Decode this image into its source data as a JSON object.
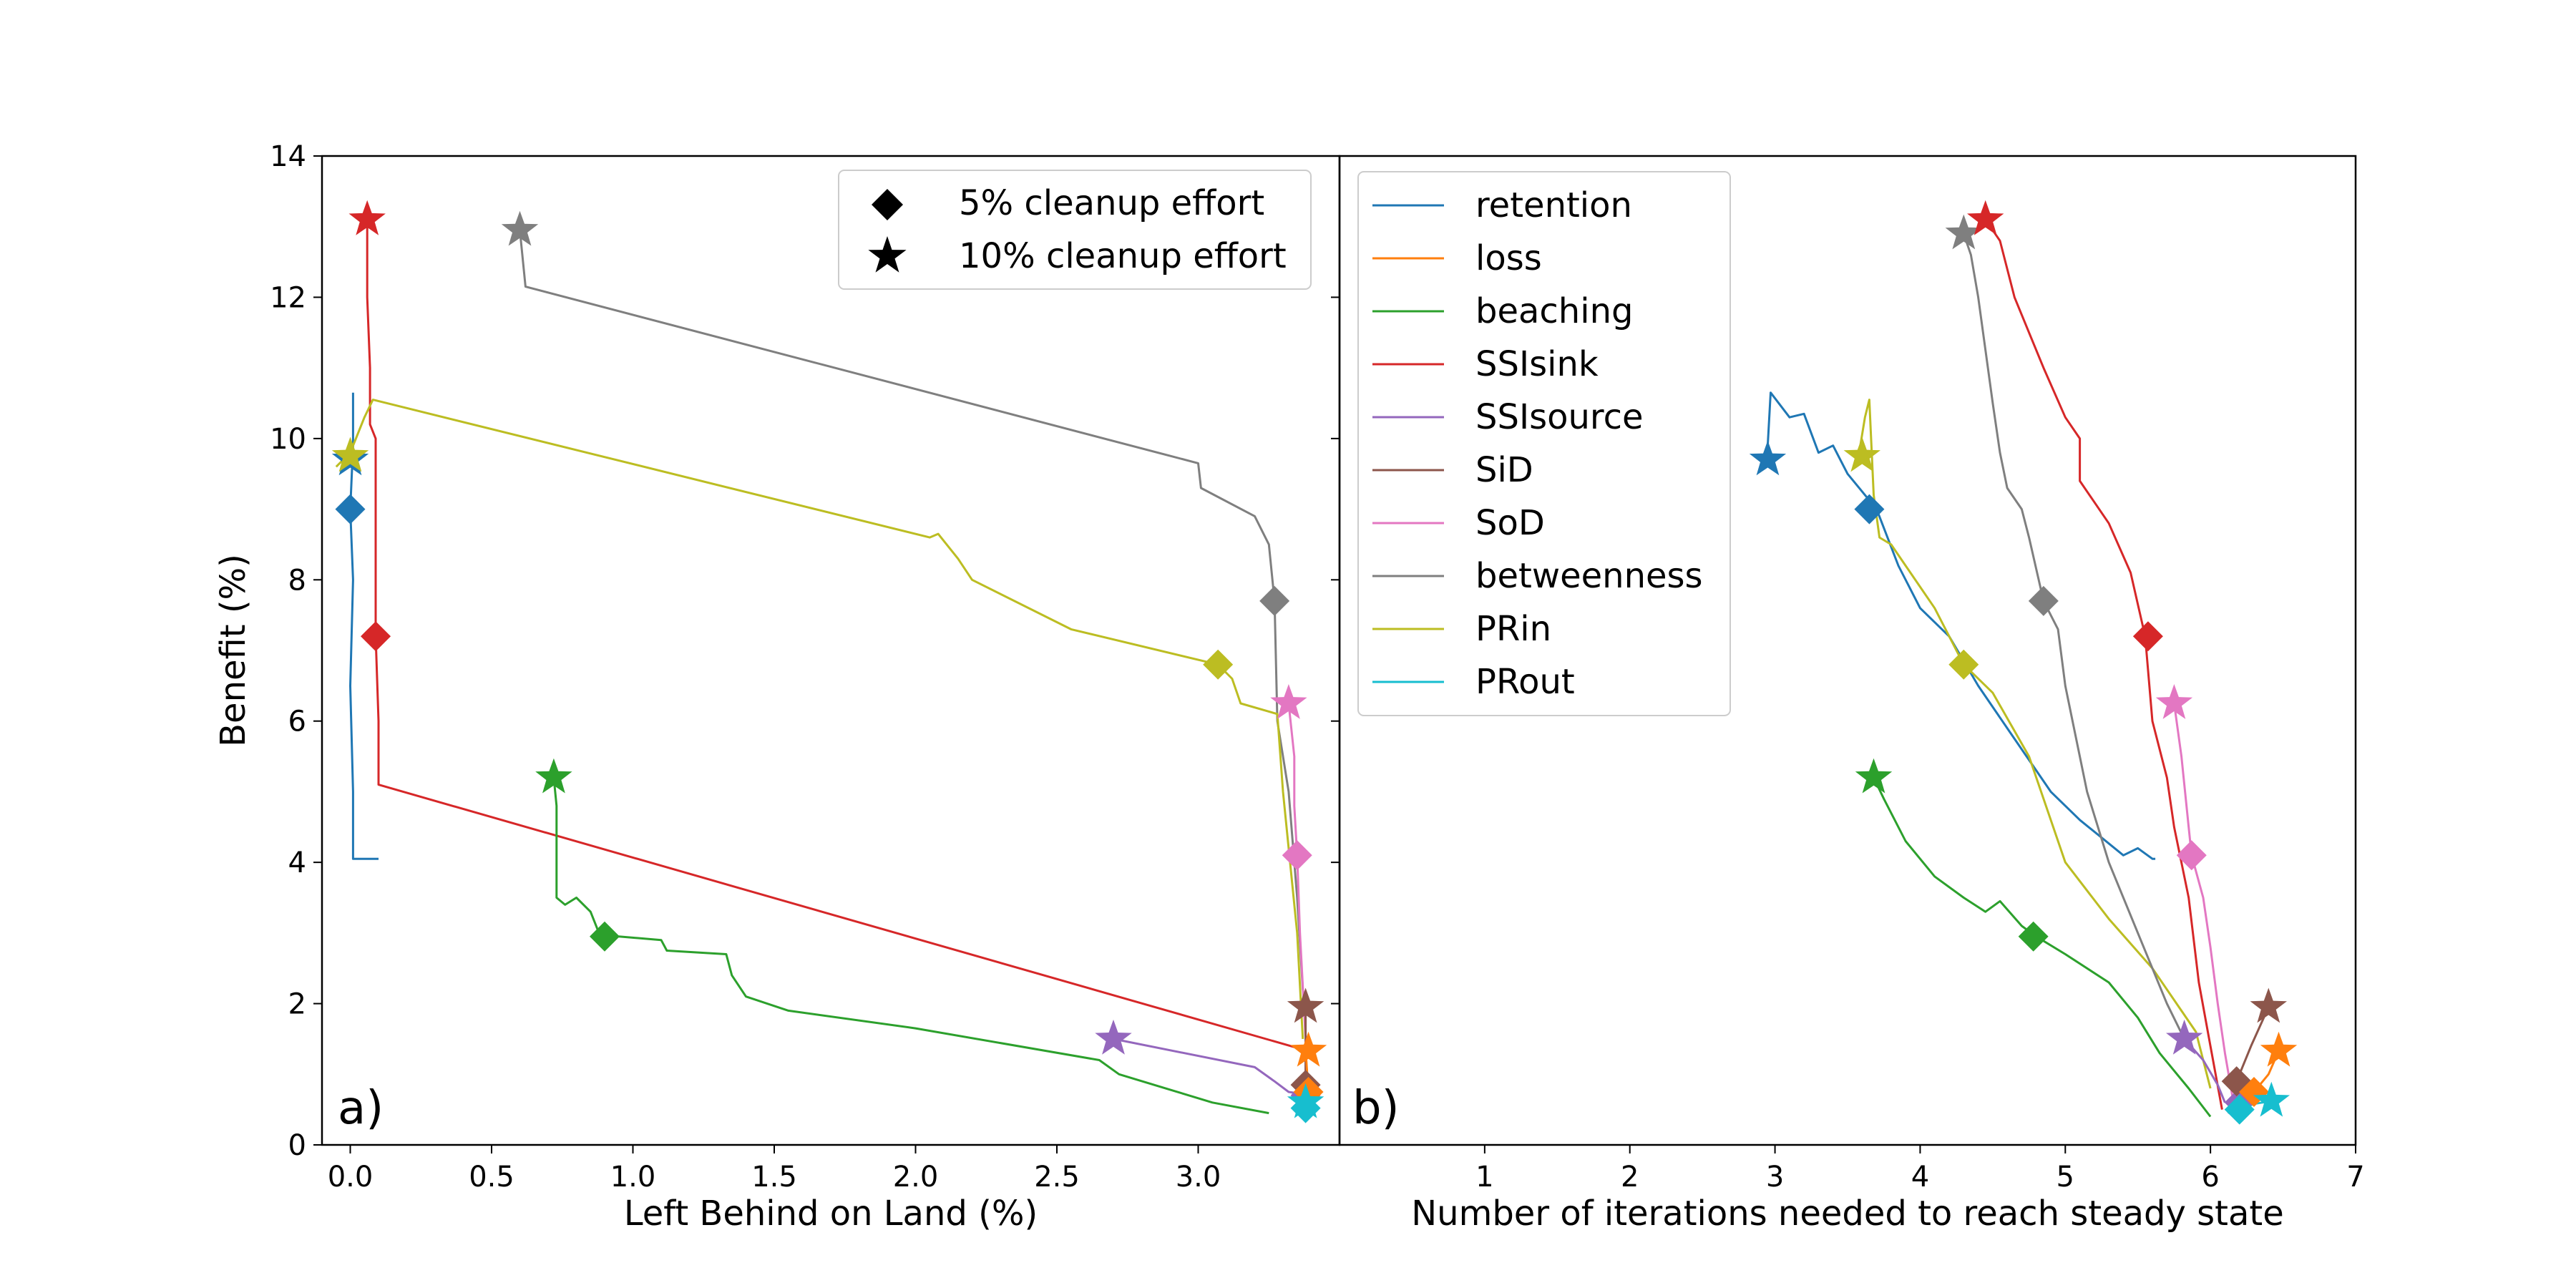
{
  "colors": {
    "retention": "#1f77b4",
    "loss": "#ff7f0e",
    "beaching": "#2ca02c",
    "SSIsink": "#d62728",
    "SSIsource": "#9467bd",
    "SiD": "#8c564b",
    "SoD": "#e377c2",
    "betweenness": "#7f7f7f",
    "PRin": "#bcbd22",
    "PRout": "#17becf",
    "frame": "#000000"
  },
  "chart_data": [
    {
      "type": "line",
      "panel_label": "a)",
      "xlabel": "Left Behind on Land (%)",
      "ylabel": "Benefit (%)",
      "xlim": [
        -0.1,
        3.5
      ],
      "ylim": [
        0,
        14
      ],
      "xticks": [
        0.0,
        0.5,
        1.0,
        1.5,
        2.0,
        2.5,
        3.0
      ],
      "xtick_labels": [
        "0.0",
        "0.5",
        "1.0",
        "1.5",
        "2.0",
        "2.5",
        "3.0"
      ],
      "yticks": [
        0,
        2,
        4,
        6,
        8,
        10,
        12,
        14
      ],
      "ytick_labels": [
        "0",
        "2",
        "4",
        "6",
        "8",
        "10",
        "12",
        "14"
      ],
      "legend_position": "top-right",
      "legend": [
        {
          "marker": "diamond",
          "label": "5% cleanup effort"
        },
        {
          "marker": "star",
          "label": "10% cleanup effort"
        }
      ],
      "series": [
        {
          "key": "retention",
          "line": [
            [
              0.01,
              10.65
            ],
            [
              0.01,
              9.9
            ],
            [
              0.0,
              9.0
            ],
            [
              0.01,
              8.0
            ],
            [
              0.0,
              6.5
            ],
            [
              0.01,
              5.0
            ],
            [
              0.01,
              4.05
            ],
            [
              0.03,
              4.05
            ],
            [
              0.1,
              4.05
            ]
          ],
          "star": [
            0.0,
            9.7
          ],
          "diamond": [
            0.0,
            9.0
          ]
        },
        {
          "key": "SSIsink",
          "line": [
            [
              0.06,
              13.1
            ],
            [
              0.06,
              12.0
            ],
            [
              0.07,
              11.0
            ],
            [
              0.07,
              10.2
            ],
            [
              0.09,
              10.0
            ],
            [
              0.09,
              7.2
            ],
            [
              0.1,
              6.0
            ],
            [
              0.1,
              5.1
            ],
            [
              3.37,
              1.35
            ]
          ],
          "star": [
            0.06,
            13.1
          ],
          "diamond": [
            0.09,
            7.2
          ]
        },
        {
          "key": "betweenness",
          "line": [
            [
              0.6,
              12.95
            ],
            [
              0.62,
              12.15
            ],
            [
              3.0,
              9.65
            ],
            [
              3.01,
              9.3
            ],
            [
              3.2,
              8.9
            ],
            [
              3.25,
              8.5
            ],
            [
              3.27,
              7.7
            ],
            [
              3.28,
              6.0
            ],
            [
              3.32,
              5.0
            ],
            [
              3.35,
              3.5
            ],
            [
              3.37,
              2.2
            ],
            [
              3.38,
              1.95
            ]
          ],
          "star": [
            0.6,
            12.95
          ],
          "diamond": [
            3.27,
            7.7
          ]
        },
        {
          "key": "PRin",
          "line": [
            [
              -0.05,
              9.6
            ],
            [
              0.0,
              9.8
            ],
            [
              0.05,
              10.3
            ],
            [
              0.08,
              10.55
            ],
            [
              2.05,
              8.6
            ],
            [
              2.08,
              8.65
            ],
            [
              2.15,
              8.3
            ],
            [
              2.2,
              8.0
            ],
            [
              2.55,
              7.3
            ],
            [
              3.07,
              6.8
            ],
            [
              3.12,
              6.6
            ],
            [
              3.15,
              6.25
            ],
            [
              3.28,
              6.1
            ],
            [
              3.3,
              5.0
            ],
            [
              3.35,
              3.0
            ],
            [
              3.37,
              1.5
            ]
          ],
          "star": [
            0.0,
            9.75
          ],
          "diamond": [
            3.07,
            6.8
          ]
        },
        {
          "key": "beaching",
          "line": [
            [
              0.72,
              5.2
            ],
            [
              0.73,
              4.8
            ],
            [
              0.73,
              3.5
            ],
            [
              0.76,
              3.4
            ],
            [
              0.8,
              3.5
            ],
            [
              0.85,
              3.3
            ],
            [
              0.88,
              3.0
            ],
            [
              0.95,
              2.95
            ],
            [
              1.1,
              2.9
            ],
            [
              1.12,
              2.75
            ],
            [
              1.33,
              2.7
            ],
            [
              1.35,
              2.4
            ],
            [
              1.4,
              2.1
            ],
            [
              1.55,
              1.9
            ],
            [
              2.0,
              1.65
            ],
            [
              2.65,
              1.2
            ],
            [
              2.72,
              1.0
            ],
            [
              3.05,
              0.6
            ],
            [
              3.25,
              0.45
            ]
          ],
          "star": [
            0.72,
            5.2
          ],
          "diamond": [
            0.9,
            2.95
          ]
        },
        {
          "key": "SSIsource",
          "line": [
            [
              2.7,
              1.5
            ],
            [
              3.2,
              1.1
            ],
            [
              3.27,
              0.9
            ],
            [
              3.32,
              0.75
            ],
            [
              3.4,
              0.7
            ]
          ],
          "star": [
            2.7,
            1.5
          ],
          "diamond": [
            3.38,
            0.7
          ]
        },
        {
          "key": "SoD",
          "line": [
            [
              3.32,
              6.25
            ],
            [
              3.34,
              5.5
            ],
            [
              3.34,
              4.8
            ],
            [
              3.35,
              4.1
            ],
            [
              3.36,
              3.0
            ],
            [
              3.38,
              1.5
            ],
            [
              3.38,
              0.9
            ]
          ],
          "star": [
            3.32,
            6.25
          ],
          "diamond": [
            3.35,
            4.1
          ]
        },
        {
          "key": "SiD",
          "line": [
            [
              3.38,
              1.95
            ],
            [
              3.38,
              0.9
            ]
          ],
          "star": [
            3.38,
            1.95
          ],
          "diamond": [
            3.38,
            0.85
          ]
        },
        {
          "key": "loss",
          "line": [
            [
              3.38,
              1.35
            ],
            [
              3.39,
              0.75
            ]
          ],
          "star": [
            3.39,
            1.33
          ],
          "diamond": [
            3.39,
            0.75
          ]
        },
        {
          "key": "PRout",
          "line": [
            [
              3.37,
              0.65
            ],
            [
              3.38,
              0.5
            ]
          ],
          "star": [
            3.38,
            0.6
          ],
          "diamond": [
            3.38,
            0.52
          ]
        }
      ]
    },
    {
      "type": "line",
      "panel_label": "b)",
      "xlabel": "Number of iterations needed to reach steady state",
      "ylabel": "",
      "xlim": [
        0,
        7
      ],
      "ylim": [
        0,
        14
      ],
      "xticks": [
        1,
        2,
        3,
        4,
        5,
        6,
        7
      ],
      "xtick_labels": [
        "1",
        "2",
        "3",
        "4",
        "5",
        "6",
        "7"
      ],
      "legend_position": "top-left",
      "legend": [
        {
          "key": "retention",
          "label": "retention"
        },
        {
          "key": "loss",
          "label": "loss"
        },
        {
          "key": "beaching",
          "label": "beaching"
        },
        {
          "key": "SSIsink",
          "label": "SSIsink"
        },
        {
          "key": "SSIsource",
          "label": "SSIsource"
        },
        {
          "key": "SiD",
          "label": "SiD"
        },
        {
          "key": "SoD",
          "label": "SoD"
        },
        {
          "key": "betweenness",
          "label": "betweenness"
        },
        {
          "key": "PRin",
          "label": "PRin"
        },
        {
          "key": "PRout",
          "label": "PRout"
        }
      ],
      "series": [
        {
          "key": "retention",
          "line": [
            [
              2.95,
              9.9
            ],
            [
              2.97,
              10.65
            ],
            [
              3.1,
              10.3
            ],
            [
              3.2,
              10.35
            ],
            [
              3.3,
              9.8
            ],
            [
              3.4,
              9.9
            ],
            [
              3.5,
              9.5
            ],
            [
              3.7,
              9.0
            ],
            [
              3.85,
              8.2
            ],
            [
              4.0,
              7.6
            ],
            [
              4.2,
              7.2
            ],
            [
              4.4,
              6.5
            ],
            [
              4.6,
              5.9
            ],
            [
              4.9,
              5.0
            ],
            [
              5.1,
              4.6
            ],
            [
              5.4,
              4.1
            ],
            [
              5.5,
              4.2
            ],
            [
              5.6,
              4.05
            ],
            [
              5.62,
              4.05
            ]
          ],
          "star": [
            2.95,
            9.7
          ],
          "diamond": [
            3.65,
            9.0
          ]
        },
        {
          "key": "PRin",
          "line": [
            [
              3.58,
              9.8
            ],
            [
              3.62,
              10.3
            ],
            [
              3.65,
              10.55
            ],
            [
              3.68,
              9.2
            ],
            [
              3.72,
              8.6
            ],
            [
              3.8,
              8.5
            ],
            [
              3.9,
              8.2
            ],
            [
              4.1,
              7.6
            ],
            [
              4.3,
              6.8
            ],
            [
              4.5,
              6.4
            ],
            [
              4.75,
              5.5
            ],
            [
              5.0,
              4.0
            ],
            [
              5.3,
              3.2
            ],
            [
              5.6,
              2.5
            ],
            [
              5.9,
              1.6
            ],
            [
              6.0,
              0.8
            ]
          ],
          "star": [
            3.6,
            9.75
          ],
          "diamond": [
            4.3,
            6.8
          ]
        },
        {
          "key": "beaching",
          "line": [
            [
              3.68,
              5.2
            ],
            [
              3.75,
              4.9
            ],
            [
              3.9,
              4.3
            ],
            [
              4.1,
              3.8
            ],
            [
              4.3,
              3.5
            ],
            [
              4.45,
              3.3
            ],
            [
              4.55,
              3.45
            ],
            [
              4.7,
              3.1
            ],
            [
              4.8,
              2.95
            ],
            [
              5.0,
              2.7
            ],
            [
              5.3,
              2.3
            ],
            [
              5.5,
              1.8
            ],
            [
              5.65,
              1.3
            ],
            [
              5.85,
              0.8
            ],
            [
              6.0,
              0.4
            ]
          ],
          "star": [
            3.68,
            5.2
          ],
          "diamond": [
            4.78,
            2.95
          ]
        },
        {
          "key": "betweenness",
          "line": [
            [
              4.3,
              12.9
            ],
            [
              4.35,
              12.6
            ],
            [
              4.4,
              12.0
            ],
            [
              4.5,
              10.5
            ],
            [
              4.55,
              9.8
            ],
            [
              4.6,
              9.3
            ],
            [
              4.7,
              9.0
            ],
            [
              4.75,
              8.6
            ],
            [
              4.85,
              7.7
            ],
            [
              4.95,
              7.3
            ],
            [
              5.0,
              6.5
            ],
            [
              5.05,
              6.0
            ],
            [
              5.15,
              5.0
            ],
            [
              5.3,
              4.0
            ],
            [
              5.5,
              3.0
            ],
            [
              5.7,
              2.0
            ],
            [
              5.82,
              1.5
            ]
          ],
          "star": [
            4.3,
            12.9
          ],
          "diamond": [
            4.85,
            7.7
          ]
        },
        {
          "key": "SSIsink",
          "line": [
            [
              4.45,
              13.1
            ],
            [
              4.55,
              12.8
            ],
            [
              4.65,
              12.0
            ],
            [
              4.75,
              11.5
            ],
            [
              4.85,
              11.0
            ],
            [
              5.0,
              10.3
            ],
            [
              5.1,
              10.0
            ],
            [
              5.1,
              9.4
            ],
            [
              5.3,
              8.8
            ],
            [
              5.45,
              8.1
            ],
            [
              5.55,
              7.2
            ],
            [
              5.6,
              6.0
            ],
            [
              5.7,
              5.2
            ],
            [
              5.75,
              4.5
            ],
            [
              5.85,
              3.5
            ],
            [
              5.92,
              2.3
            ],
            [
              6.0,
              1.4
            ],
            [
              6.08,
              0.5
            ]
          ],
          "star": [
            4.45,
            13.1
          ],
          "diamond": [
            5.57,
            7.2
          ]
        },
        {
          "key": "SoD",
          "line": [
            [
              5.75,
              6.25
            ],
            [
              5.8,
              5.5
            ],
            [
              5.85,
              4.5
            ],
            [
              5.87,
              4.1
            ],
            [
              5.95,
              3.5
            ],
            [
              6.0,
              2.8
            ],
            [
              6.05,
              2.0
            ],
            [
              6.1,
              1.3
            ],
            [
              6.15,
              0.7
            ]
          ],
          "star": [
            5.75,
            6.25
          ],
          "diamond": [
            5.87,
            4.1
          ]
        },
        {
          "key": "SSIsource",
          "line": [
            [
              5.82,
              1.5
            ],
            [
              5.95,
              1.2
            ],
            [
              6.05,
              0.85
            ],
            [
              6.1,
              0.6
            ]
          ],
          "star": [
            5.82,
            1.5
          ],
          "diamond": [
            6.2,
            0.6
          ]
        },
        {
          "key": "SiD",
          "line": [
            [
              6.18,
              0.9
            ],
            [
              6.28,
              1.4
            ],
            [
              6.4,
              1.95
            ]
          ],
          "star": [
            6.4,
            1.95
          ],
          "diamond": [
            6.18,
            0.9
          ]
        },
        {
          "key": "loss",
          "line": [
            [
              6.3,
              0.75
            ],
            [
              6.4,
              1.0
            ],
            [
              6.47,
              1.33
            ]
          ],
          "star": [
            6.47,
            1.33
          ],
          "diamond": [
            6.3,
            0.75
          ]
        },
        {
          "key": "PRout",
          "line": [
            [
              6.2,
              0.5
            ],
            [
              6.3,
              0.58
            ],
            [
              6.42,
              0.62
            ]
          ],
          "star": [
            6.42,
            0.62
          ],
          "diamond": [
            6.2,
            0.5
          ]
        },
        {
          "key": "retention_tail",
          "line": [
            [
              6.12,
              0.45
            ],
            [
              6.2,
              0.6
            ]
          ],
          "star": null,
          "diamond": null
        }
      ]
    }
  ]
}
